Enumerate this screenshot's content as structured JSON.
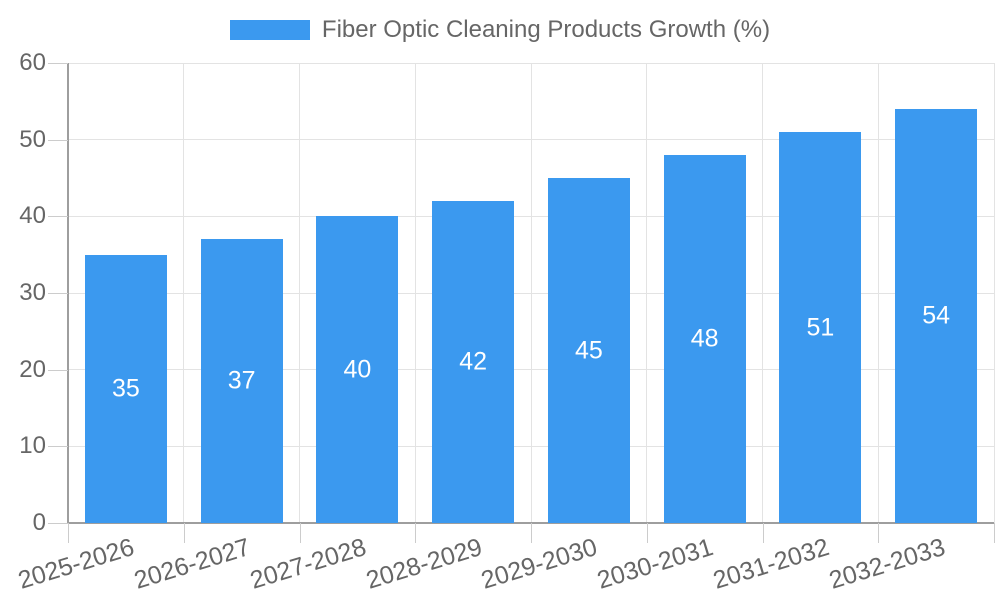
{
  "chart_data": {
    "type": "bar",
    "title": "Fiber Optic Cleaning Products Growth (%)",
    "legend": {
      "position": "top",
      "entries": [
        "Fiber Optic Cleaning Products Growth (%)"
      ]
    },
    "categories": [
      "2025-2026",
      "2026-2027",
      "2027-2028",
      "2028-2029",
      "2029-2030",
      "2030-2031",
      "2031-2032",
      "2032-2033"
    ],
    "series": [
      {
        "name": "Fiber Optic Cleaning Products Growth (%)",
        "values": [
          35,
          37,
          40,
          42,
          45,
          48,
          51,
          54
        ]
      }
    ],
    "value_labels_shown": true,
    "xlabel": "",
    "ylabel": "",
    "ylim": [
      0,
      60
    ],
    "yticks": [
      0,
      10,
      20,
      30,
      40,
      50,
      60
    ],
    "grid": {
      "horizontal": true,
      "vertical": true
    },
    "x_tick_label_rotation_deg": -17,
    "colors": {
      "bar": "#3B99EF",
      "bar_value_label": "#FFFFFF",
      "axis_text": "#666666",
      "legend_text": "#666666",
      "gridline": "#E3E3E3",
      "axis_line": "#9E9E9E",
      "tick_mark": "#CCCCCC",
      "background": "#FFFFFF"
    }
  }
}
